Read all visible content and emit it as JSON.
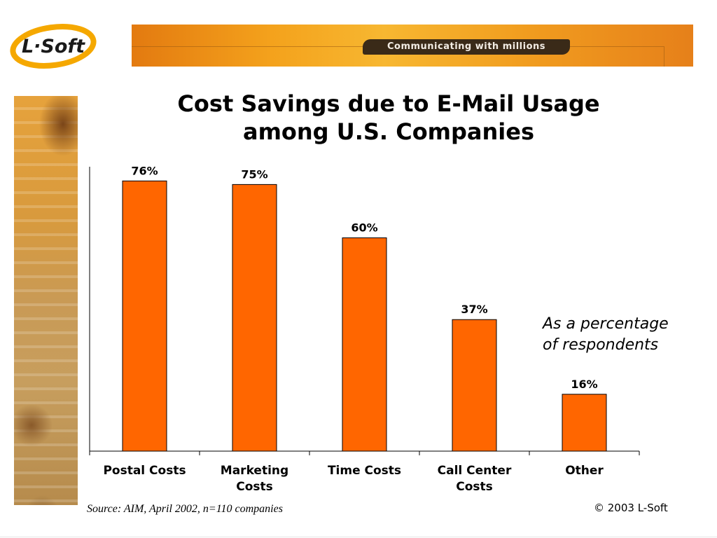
{
  "brand": {
    "logo_text": "L-Soft",
    "tagline": "Communicating with millions",
    "accent": "#ff6600",
    "banner_color": "#f4a21c"
  },
  "slide": {
    "title_line1": "Cost Savings due to E-Mail Usage",
    "title_line2": "among U.S. Companies",
    "note_line1": "As a percentage",
    "note_line2": "of respondents",
    "source": "Source: AIM, April 2002, n=110 companies",
    "copyright": "© 2003 L-Soft"
  },
  "chart_data": {
    "type": "bar",
    "categories": [
      [
        "Postal Costs"
      ],
      [
        "Marketing",
        "Costs"
      ],
      [
        "Time Costs"
      ],
      [
        "Call Center",
        "Costs"
      ],
      [
        "Other"
      ]
    ],
    "values": [
      76,
      75,
      60,
      37,
      16
    ],
    "data_labels": [
      "76%",
      "75%",
      "60%",
      "37%",
      "16%"
    ],
    "ylim": [
      0,
      80
    ],
    "grid": false,
    "bar_color": "#ff6600"
  }
}
